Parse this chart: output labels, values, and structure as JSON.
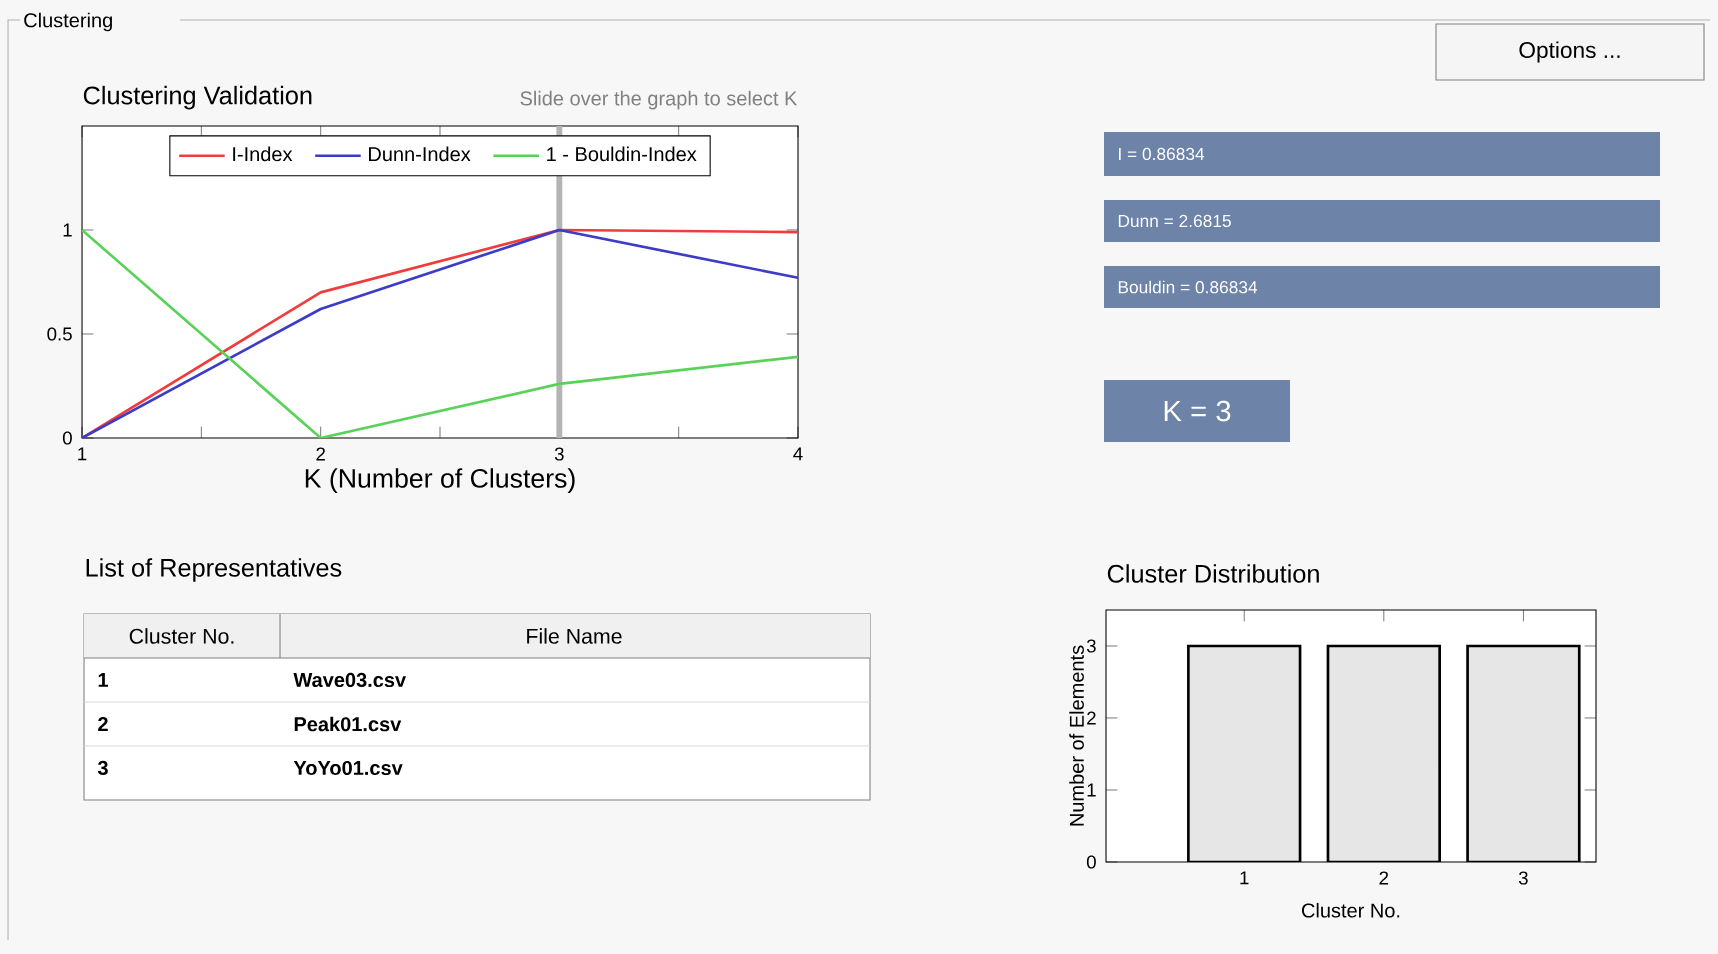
{
  "chart_data": [
    {
      "type": "line",
      "title": "Clustering Validation",
      "subtitle": "Slide over the graph to select K",
      "xlabel": "K (Number of Clusters)",
      "x": [
        1,
        2,
        3,
        4
      ],
      "xlim": [
        1,
        4
      ],
      "xticks": [
        1,
        {
          "value": 1.5,
          "label": null
        },
        2,
        {
          "value": 2.5,
          "label": null
        },
        3,
        {
          "value": 3.5,
          "label": null
        },
        4
      ],
      "ylim": [
        0,
        1.5
      ],
      "yticks": [
        0,
        0.5,
        1
      ],
      "legend": "top",
      "ref_lines": [
        {
          "axis": "x",
          "value": 3,
          "color": "#b4b4b4"
        }
      ],
      "series": [
        {
          "name": "I-Index",
          "color": "#f03c3c",
          "values": [
            0,
            0.7,
            1,
            0.99
          ]
        },
        {
          "name": "Dunn-Index",
          "color": "#3c3cc8",
          "values": [
            0,
            0.62,
            1,
            0.77
          ]
        },
        {
          "name": "1 - Bouldin-Index",
          "color": "#5ad25a",
          "values": [
            1,
            0,
            0.26,
            0.39
          ]
        }
      ]
    },
    {
      "type": "bar",
      "title": "Cluster Distribution",
      "xlabel": "Cluster No.",
      "ylabel": "Number of Elements",
      "categories": [
        "1",
        "2",
        "3"
      ],
      "values": [
        3,
        3,
        3
      ],
      "color": "#e6e6e6",
      "ylim": [
        0,
        3.5
      ],
      "yticks": [
        0,
        1,
        2,
        3
      ]
    },
    {
      "type": "other",
      "title": "Clustering",
      "annotations": [
        "Options ...",
        "I = 0.86834",
        "Dunn = 2.6815",
        "Bouldin = 0.86834",
        "K = 3"
      ]
    },
    {
      "type": "other",
      "title": "List of Representatives",
      "annotations": [
        "Cluster No.",
        "File Name",
        "1",
        "Wave03.csv",
        "2",
        "Peak01.csv",
        "3",
        "YoYo01.csv"
      ]
    }
  ]
}
